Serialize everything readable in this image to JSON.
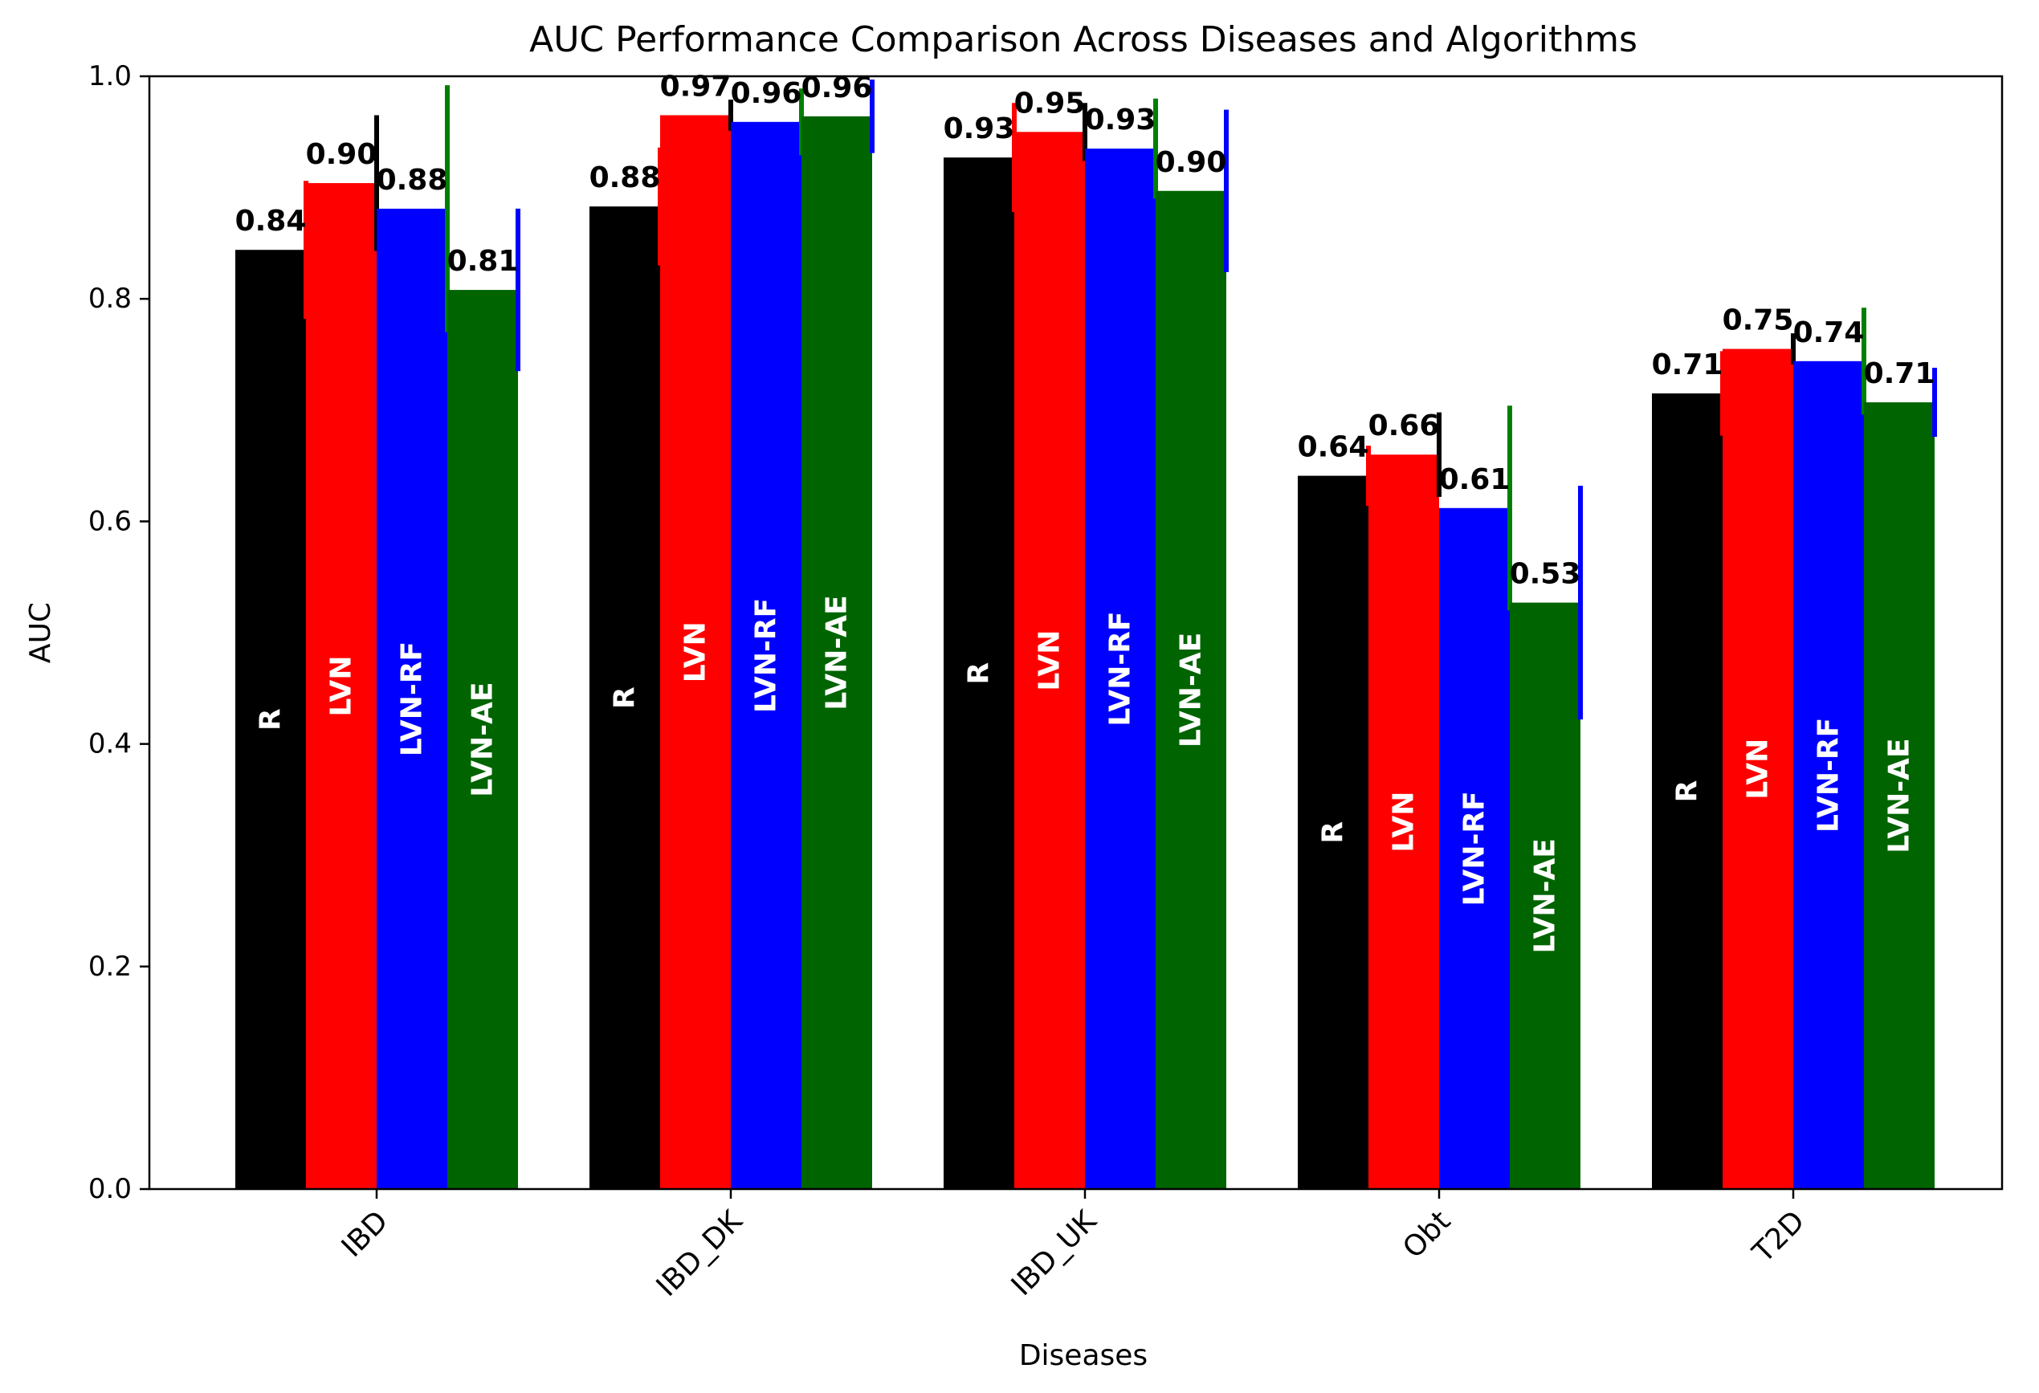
{
  "chart_data": {
    "type": "bar",
    "title": "AUC Performance Comparison Across Diseases and Algorithms",
    "xlabel": "Diseases",
    "ylabel": "AUC",
    "ylim": [
      0,
      1.0
    ],
    "yticks": [
      "0.0",
      "0.2",
      "0.4",
      "0.6",
      "0.8",
      "1.0"
    ],
    "categories": [
      "IBD",
      "IBD_DK",
      "IBD_UK",
      "Obt",
      "T2D"
    ],
    "grid": false,
    "legend": "none",
    "series": [
      {
        "name": "R",
        "color": "#000000",
        "error_color": "#ff0000",
        "values": [
          0.844,
          0.883,
          0.927,
          0.641,
          0.715
        ],
        "errors": [
          0.062,
          0.053,
          0.049,
          0.027,
          0.038
        ],
        "labels": [
          "0.84",
          "0.88",
          "0.93",
          "0.64",
          "0.71"
        ]
      },
      {
        "name": "LVN",
        "color": "#ff0000",
        "error_color": "#000000",
        "values": [
          0.904,
          0.965,
          0.95,
          0.66,
          0.755
        ],
        "errors": [
          0.061,
          0.014,
          0.026,
          0.038,
          0.014
        ],
        "labels": [
          "0.90",
          "0.97",
          "0.95",
          "0.66",
          "0.75"
        ]
      },
      {
        "name": "LVN-RF",
        "color": "#0000ff",
        "error_color": "#008000",
        "values": [
          0.881,
          0.959,
          0.935,
          0.612,
          0.744
        ],
        "errors": [
          0.111,
          0.03,
          0.045,
          0.092,
          0.048
        ],
        "labels": [
          "0.88",
          "0.96",
          "0.93",
          "0.61",
          "0.74"
        ]
      },
      {
        "name": "LVN-AE",
        "color": "#006400",
        "error_color": "#0000ff",
        "values": [
          0.808,
          0.964,
          0.897,
          0.527,
          0.707
        ],
        "errors": [
          0.073,
          0.033,
          0.073,
          0.105,
          0.031
        ],
        "labels": [
          "0.81",
          "0.96",
          "0.90",
          "0.53",
          "0.71"
        ]
      }
    ]
  }
}
